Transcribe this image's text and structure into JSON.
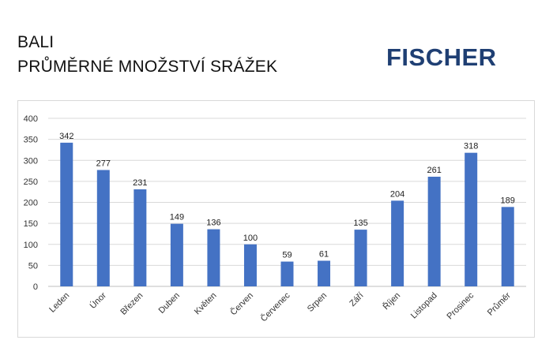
{
  "header": {
    "title_line1": "BALI",
    "title_line2": "PRŮMĚRNÉ MNOŽSTVÍ SRÁŽEK"
  },
  "brand": {
    "logo_text": "FISCHER",
    "color": "#1f3f73"
  },
  "chart_data": {
    "type": "bar",
    "title": "",
    "xlabel": "",
    "ylabel": "",
    "ylim": [
      0,
      400
    ],
    "yticks": [
      0,
      50,
      100,
      150,
      200,
      250,
      300,
      350,
      400
    ],
    "grid": true,
    "legend": "none",
    "bar_color": "#4472c4",
    "categories": [
      "Leden",
      "Únor",
      "Březen",
      "Duben",
      "Květen",
      "Červen",
      "Červenec",
      "Srpen",
      "Září",
      "Říjen",
      "Listopad",
      "Prosinec",
      "Průměr"
    ],
    "values": [
      342,
      277,
      231,
      149,
      136,
      100,
      59,
      61,
      135,
      204,
      261,
      318,
      189
    ]
  }
}
